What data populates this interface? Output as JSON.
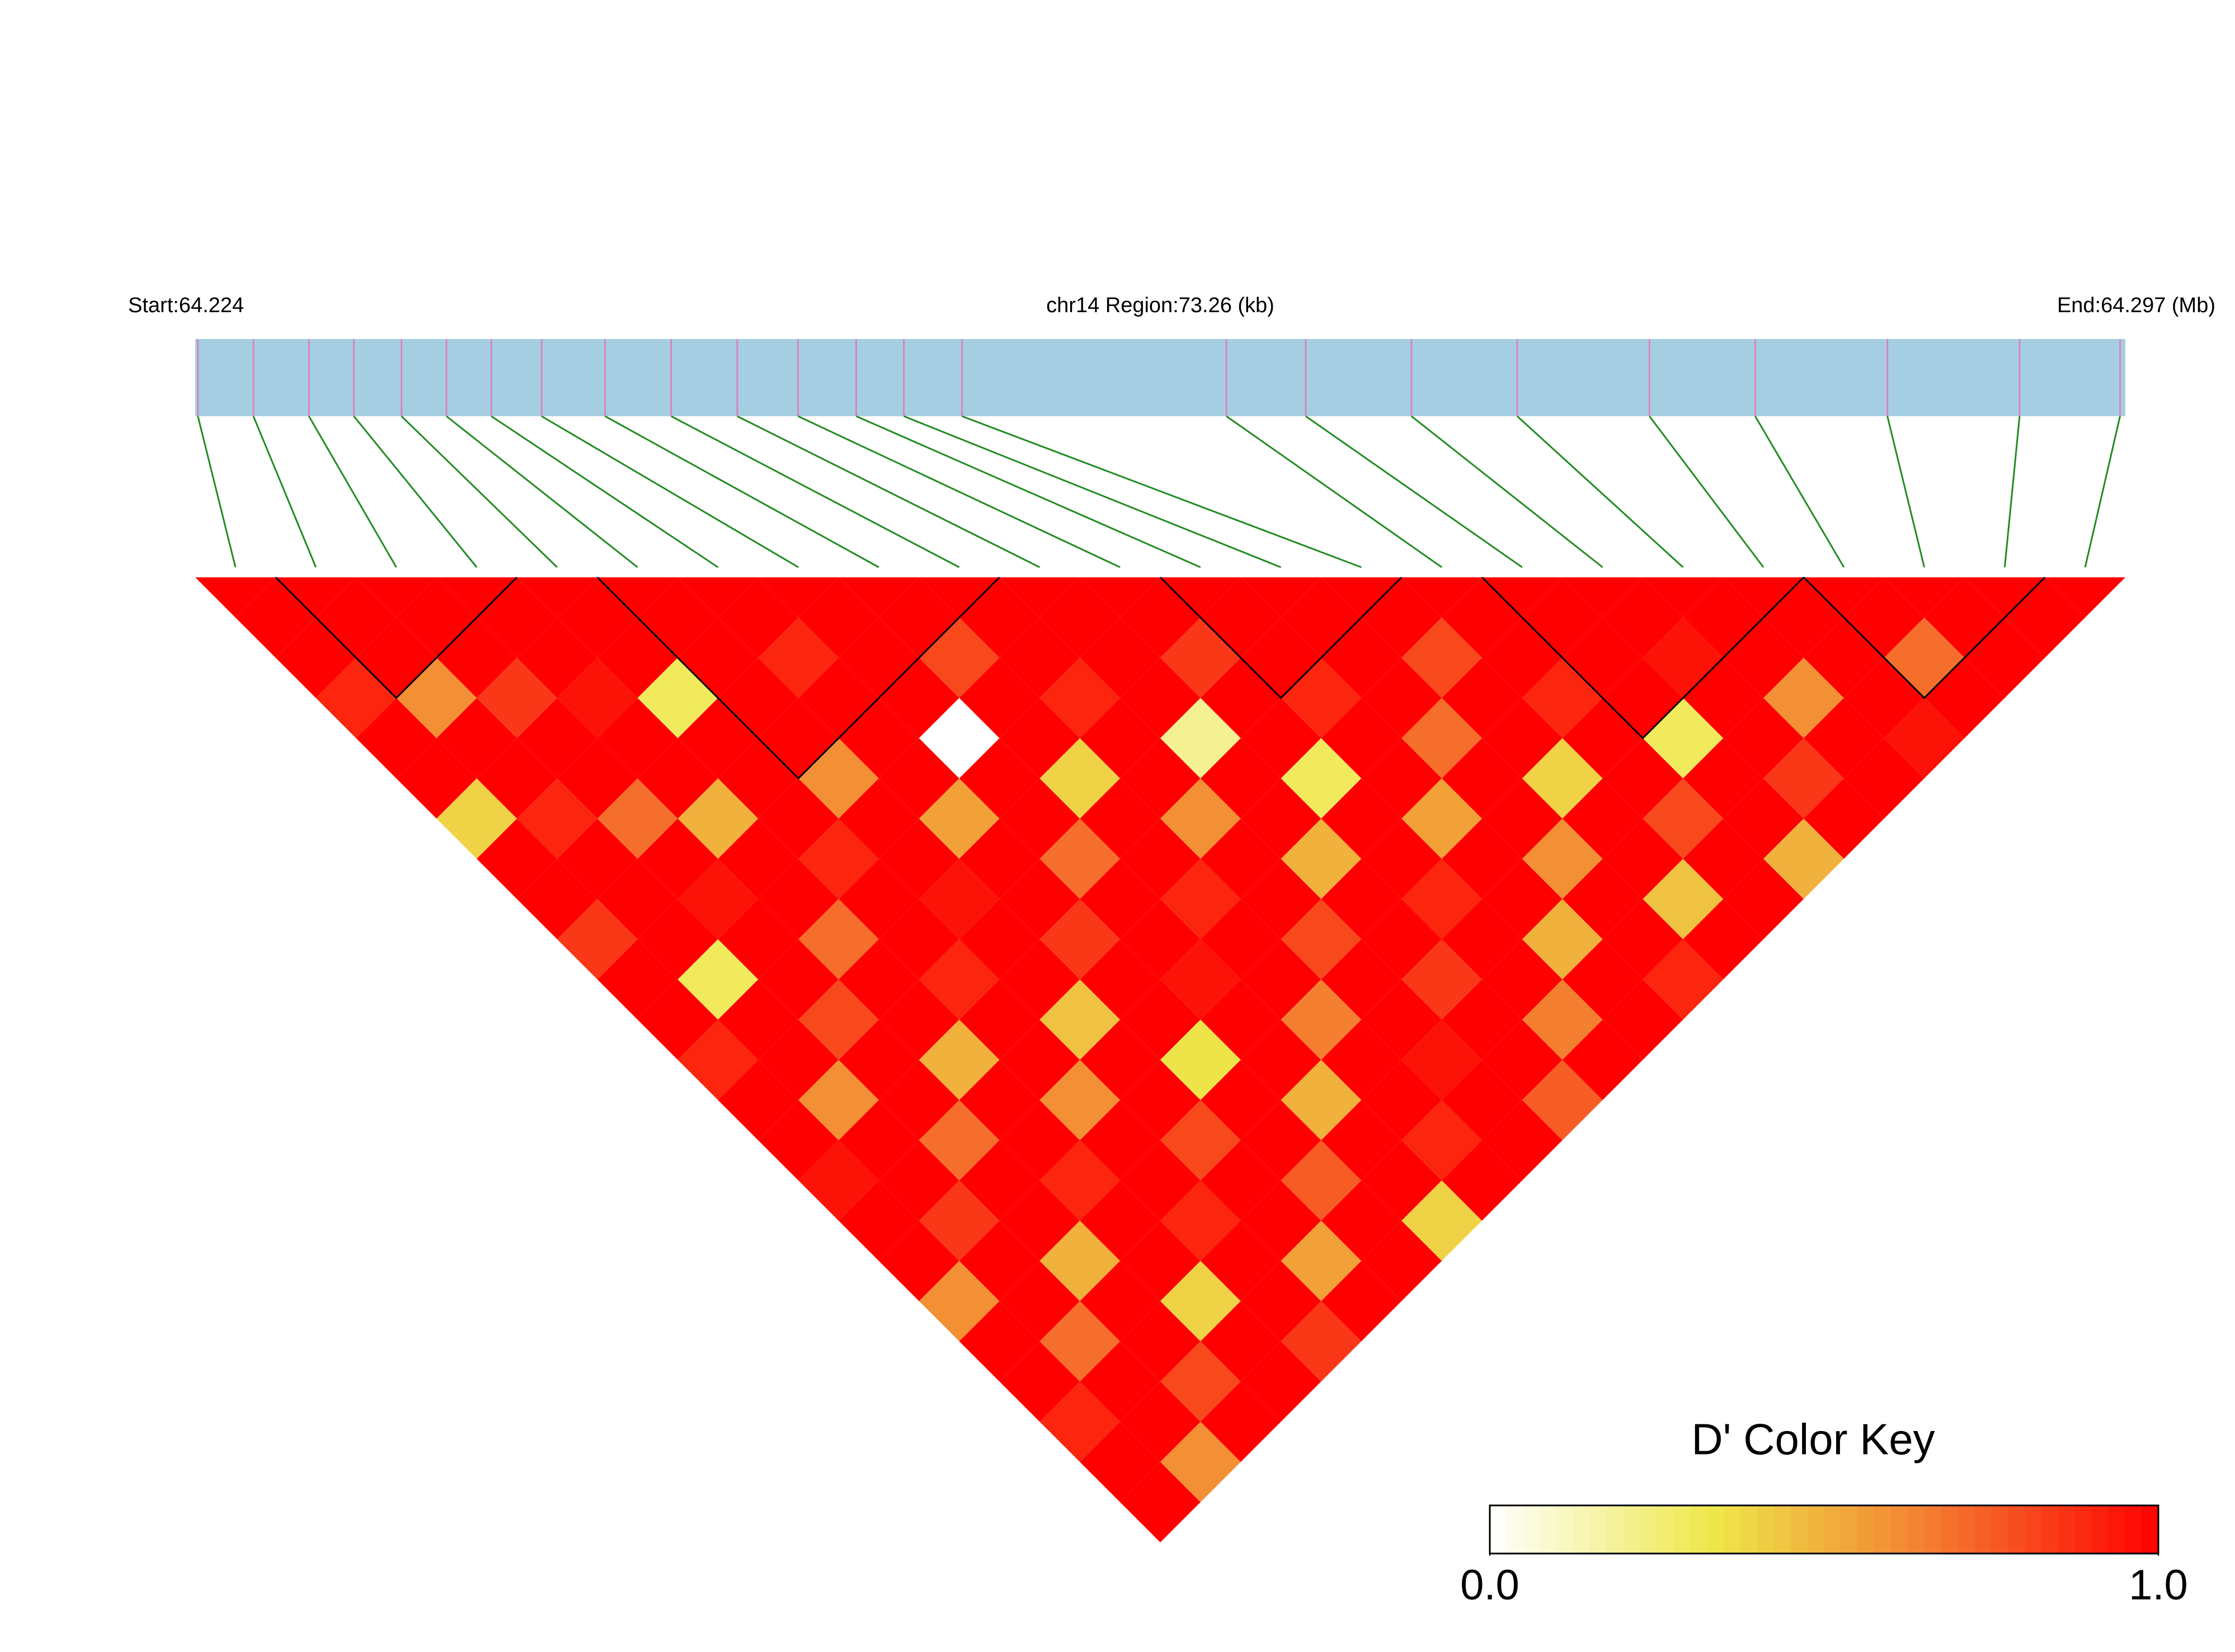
{
  "chart_data": {
    "type": "ld_heatmap",
    "start_label": "Start:64.224",
    "region_label": "chr14 Region:73.26 (kb)",
    "end_label": "End:64.297 (Mb)",
    "xlim": [
      64.224,
      64.297
    ],
    "snp_positions": [
      64.2241,
      64.2262,
      64.2283,
      64.23,
      64.2318,
      64.2335,
      64.2352,
      64.2371,
      64.2395,
      64.242,
      64.2445,
      64.2468,
      64.249,
      64.2508,
      64.253,
      64.263,
      64.266,
      64.27,
      64.274,
      64.279,
      64.283,
      64.288,
      64.293,
      64.2968
    ],
    "dprime": [
      [
        1
      ],
      [
        1,
        1
      ],
      [
        0.9,
        1,
        1
      ],
      [
        1,
        0.6,
        1,
        1
      ],
      [
        1,
        1,
        0.85,
        1,
        1
      ],
      [
        0.4,
        1,
        1,
        0.95,
        1,
        1
      ],
      [
        1,
        0.9,
        1,
        1,
        0.3,
        1,
        1
      ],
      [
        1,
        1,
        0.7,
        1,
        1,
        1,
        0.9,
        1
      ],
      [
        0.85,
        1,
        1,
        0.5,
        1,
        1,
        1,
        1,
        1
      ],
      [
        1,
        1,
        0.95,
        1,
        1,
        0.6,
        1,
        1,
        0.8,
        1
      ],
      [
        1,
        0.3,
        1,
        1,
        0.9,
        1,
        1,
        0,
        1,
        1,
        1
      ],
      [
        0.9,
        1,
        1,
        0.7,
        1,
        1,
        0.55,
        1,
        1,
        0.9,
        1,
        1
      ],
      [
        1,
        1,
        0.8,
        1,
        1,
        0.95,
        1,
        1,
        0.4,
        1,
        1,
        0.85,
        1
      ],
      [
        1,
        0.6,
        1,
        1,
        0.9,
        1,
        1,
        0.7,
        1,
        1,
        0.2,
        1,
        1,
        1
      ],
      [
        0.95,
        1,
        1,
        0.5,
        1,
        1,
        0.85,
        1,
        1,
        0.6,
        1,
        1,
        0.9,
        1,
        1
      ],
      [
        1,
        1,
        0.7,
        1,
        1,
        0.45,
        1,
        1,
        0.9,
        1,
        1,
        0.3,
        1,
        1,
        0.8,
        1
      ],
      [
        1,
        0.85,
        1,
        1,
        0.6,
        1,
        1,
        0.95,
        1,
        1,
        0.5,
        1,
        1,
        0.7,
        1,
        1,
        1
      ],
      [
        0.6,
        1,
        1,
        0.9,
        1,
        1,
        0.35,
        1,
        1,
        0.8,
        1,
        1,
        0.55,
        1,
        1,
        0.9,
        1,
        1
      ],
      [
        1,
        1,
        0.5,
        1,
        1,
        0.8,
        1,
        1,
        0.65,
        1,
        1,
        0.9,
        1,
        1,
        0.4,
        1,
        1,
        0.95,
        1
      ],
      [
        1,
        0.7,
        1,
        1,
        0.9,
        1,
        1,
        0.5,
        1,
        1,
        0.85,
        1,
        1,
        0.6,
        1,
        1,
        0.3,
        1,
        1,
        1
      ],
      [
        0.9,
        1,
        1,
        0.4,
        1,
        1,
        0.75,
        1,
        1,
        0.95,
        1,
        1,
        0.5,
        1,
        1,
        0.8,
        1,
        1,
        0.6,
        1,
        1
      ],
      [
        1,
        1,
        0.8,
        1,
        1,
        0.55,
        1,
        1,
        0.9,
        1,
        1,
        0.65,
        1,
        1,
        0.45,
        1,
        1,
        0.85,
        1,
        1,
        0.7,
        1
      ],
      [
        1,
        0.6,
        1,
        1,
        0.85,
        1,
        1,
        0.4,
        1,
        1,
        0.75,
        1,
        1,
        0.9,
        1,
        1,
        0.5,
        1,
        1,
        0.95,
        1,
        1,
        1
      ]
    ],
    "blocks": [
      [
        1,
        3
      ],
      [
        5,
        9
      ],
      [
        12,
        14
      ],
      [
        16,
        19
      ],
      [
        20,
        22
      ]
    ],
    "colors": [
      "#ffffff",
      "#eee84a",
      "#f47a30",
      "#ff0000"
    ],
    "bar_color": "#a6cee3",
    "snp_line_color": "#d884c0",
    "link_color": "#228b22",
    "block_color": "#000000",
    "legend_title": "D' Color Key",
    "legend_ticks": [
      {
        "value": 0,
        "label": "0.0"
      },
      {
        "value": 1,
        "label": "1.0"
      }
    ]
  }
}
